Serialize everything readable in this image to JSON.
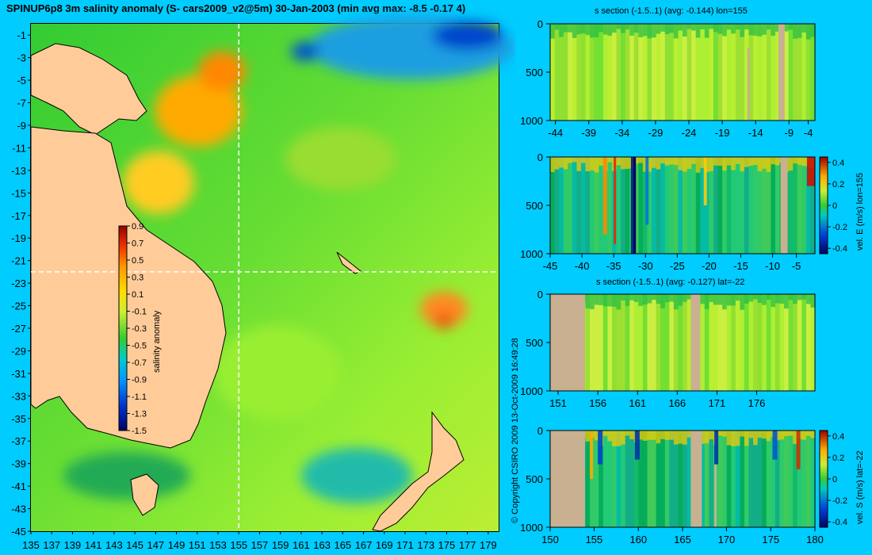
{
  "title": "SPINUP6p8 3m salinity anomaly (S- cars2009_v2@5m) 30-Jan-2003 (min avg max: -8.5 -0.17 4)",
  "copyright": "© Copyright CSIRO 2009   13-Oct-2009 16:49:28",
  "colors": {
    "background": "#00ccff",
    "land": "#ffcc99",
    "section_land": "#c8b090"
  },
  "chart_data": [
    {
      "type": "heatmap",
      "name": "map",
      "xlim": [
        135,
        180
      ],
      "ylim": [
        -45,
        0
      ],
      "x_ticks": [
        "135",
        "137",
        "139",
        "141",
        "143",
        "145",
        "147",
        "149",
        "151",
        "153",
        "155",
        "157",
        "159",
        "161",
        "163",
        "165",
        "167",
        "169",
        "171",
        "173",
        "175",
        "177",
        "179"
      ],
      "y_ticks": [
        "-1",
        "-3",
        "-5",
        "-7",
        "-9",
        "-11",
        "-13",
        "-15",
        "-17",
        "-19",
        "-21",
        "-23",
        "-25",
        "-27",
        "-29",
        "-31",
        "-33",
        "-35",
        "-37",
        "-39",
        "-41",
        "-43",
        "-45"
      ],
      "crosshair": {
        "lon": 155,
        "lat": -22
      },
      "colorbar": {
        "label": "salinity anomaly",
        "ticks": [
          "0.9",
          "0.7",
          "0.5",
          "0.3",
          "0.1",
          "-0.1",
          "-0.3",
          "-0.5",
          "-0.7",
          "-0.9",
          "-1.1",
          "-1.3",
          "-1.5"
        ],
        "range": [
          -1.5,
          0.9
        ]
      }
    },
    {
      "type": "heatmap",
      "name": "salinity-lon-section",
      "title": "s section (-1.5..1) (avg: -0.144) lon=155",
      "x_ticks": [
        "-44",
        "-39",
        "-34",
        "-29",
        "-24",
        "-19",
        "-14",
        "-9",
        "-4"
      ],
      "y_ticks": [
        "0",
        "500",
        "1000"
      ]
    },
    {
      "type": "heatmap",
      "name": "velocity-east-section",
      "x_ticks": [
        "-45",
        "-40",
        "-35",
        "-30",
        "-25",
        "-20",
        "-15",
        "-10",
        "-5"
      ],
      "y_ticks": [
        "0",
        "500",
        "1000"
      ],
      "colorbar": {
        "label": "vel. E (m/s) lon=155",
        "ticks": [
          "0.4",
          "0.2",
          "0",
          "-0.2",
          "-0.4"
        ]
      }
    },
    {
      "type": "heatmap",
      "name": "salinity-lat-section",
      "title": "s section (-1.5..1) (avg: -0.127) lat=-22",
      "x_ticks": [
        "151",
        "156",
        "161",
        "166",
        "171",
        "176"
      ],
      "y_ticks": [
        "0",
        "500",
        "1000"
      ]
    },
    {
      "type": "heatmap",
      "name": "velocity-south-section",
      "x_ticks": [
        "150",
        "155",
        "160",
        "165",
        "170",
        "175",
        "180"
      ],
      "y_ticks": [
        "0",
        "500",
        "1000"
      ],
      "colorbar": {
        "label": "vel. S (m/s) lat=-22",
        "ticks": [
          "0.4",
          "0.2",
          "0",
          "-0.2",
          "-0.4"
        ]
      }
    }
  ]
}
